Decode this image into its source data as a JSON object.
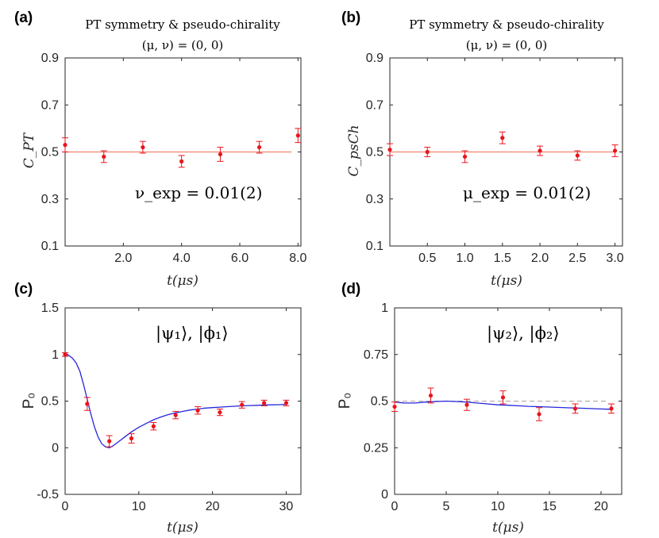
{
  "chart_data": [
    {
      "panel": "(a)",
      "type": "scatter",
      "title": "PT symmetry & pseudo-chirality",
      "subtitle": "(μ, ν) = (0, 0)",
      "xlabel": "t(μs)",
      "ylabel": "C_PT",
      "xlim": [
        0,
        8.1
      ],
      "ylim": [
        0.1,
        0.9
      ],
      "xticks": [
        "2.0",
        "4.0",
        "6.0",
        "8.0"
      ],
      "yticks": [
        "0.1",
        "0.3",
        "0.5",
        "0.7",
        "0.9"
      ],
      "annotation": "ν_exp = 0.01(2)",
      "reference_line": 0.5,
      "points": [
        {
          "x": 0,
          "y": 0.53,
          "err": 0.03
        },
        {
          "x": 1.33,
          "y": 0.48,
          "err": 0.025
        },
        {
          "x": 2.67,
          "y": 0.52,
          "err": 0.025
        },
        {
          "x": 4.0,
          "y": 0.46,
          "err": 0.025
        },
        {
          "x": 5.33,
          "y": 0.49,
          "err": 0.03
        },
        {
          "x": 6.67,
          "y": 0.52,
          "err": 0.025
        },
        {
          "x": 8.0,
          "y": 0.57,
          "err": 0.03
        }
      ]
    },
    {
      "panel": "(b)",
      "type": "scatter",
      "title": "PT symmetry & pseudo-chirality",
      "subtitle": "(μ, ν) = (0, 0)",
      "xlabel": "t(μs)",
      "ylabel": "C_psCh",
      "xlim": [
        0,
        3.1
      ],
      "ylim": [
        0.1,
        0.9
      ],
      "xticks": [
        "0.5",
        "1.0",
        "1.5",
        "2.0",
        "2.5",
        "3.0"
      ],
      "yticks": [
        "0.1",
        "0.3",
        "0.5",
        "0.7",
        "0.9"
      ],
      "annotation": "μ_exp = 0.01(2)",
      "reference_line": 0.5,
      "points": [
        {
          "x": 0,
          "y": 0.51,
          "err": 0.025
        },
        {
          "x": 0.5,
          "y": 0.5,
          "err": 0.02
        },
        {
          "x": 1.0,
          "y": 0.48,
          "err": 0.025
        },
        {
          "x": 1.5,
          "y": 0.56,
          "err": 0.025
        },
        {
          "x": 2.0,
          "y": 0.505,
          "err": 0.02
        },
        {
          "x": 2.5,
          "y": 0.485,
          "err": 0.02
        },
        {
          "x": 3.0,
          "y": 0.505,
          "err": 0.025
        }
      ]
    },
    {
      "panel": "(c)",
      "type": "line",
      "xlabel": "t(μs)",
      "ylabel": "P₀",
      "xlim": [
        0,
        32
      ],
      "ylim": [
        -0.5,
        1.5
      ],
      "xticks": [
        "0",
        "10",
        "20",
        "30"
      ],
      "yticks": [
        "-0.5",
        "0",
        "0.5",
        "1",
        "1.5"
      ],
      "annotation": "|ψ₁⟩, |ϕ₁⟩",
      "points": [
        {
          "x": 0,
          "y": 1.0,
          "err": 0.02
        },
        {
          "x": 3,
          "y": 0.47,
          "err": 0.07
        },
        {
          "x": 6,
          "y": 0.07,
          "err": 0.06
        },
        {
          "x": 9,
          "y": 0.1,
          "err": 0.05
        },
        {
          "x": 12,
          "y": 0.23,
          "err": 0.04
        },
        {
          "x": 15,
          "y": 0.35,
          "err": 0.04
        },
        {
          "x": 18,
          "y": 0.4,
          "err": 0.04
        },
        {
          "x": 21,
          "y": 0.38,
          "err": 0.035
        },
        {
          "x": 24,
          "y": 0.46,
          "err": 0.035
        },
        {
          "x": 27,
          "y": 0.48,
          "err": 0.03
        },
        {
          "x": 30,
          "y": 0.48,
          "err": 0.03
        }
      ],
      "fit_curve": {
        "x": [
          0,
          0.5,
          1,
          1.5,
          2,
          2.5,
          3,
          3.5,
          4,
          4.5,
          5,
          5.5,
          6,
          6.5,
          7,
          7.5,
          8,
          9,
          10,
          11,
          12,
          13,
          14,
          15,
          16,
          17,
          18,
          19,
          20,
          21,
          22,
          23,
          24,
          25,
          26,
          27,
          28,
          29,
          30
        ],
        "y": [
          1.0,
          0.99,
          0.96,
          0.91,
          0.82,
          0.68,
          0.52,
          0.36,
          0.22,
          0.11,
          0.04,
          0.01,
          0.0,
          0.02,
          0.05,
          0.08,
          0.11,
          0.17,
          0.22,
          0.26,
          0.3,
          0.33,
          0.355,
          0.375,
          0.39,
          0.405,
          0.415,
          0.425,
          0.43,
          0.435,
          0.44,
          0.445,
          0.45,
          0.452,
          0.455,
          0.458,
          0.46,
          0.462,
          0.465
        ]
      }
    },
    {
      "panel": "(d)",
      "type": "line",
      "xlabel": "t(μs)",
      "ylabel": "P₀",
      "xlim": [
        0,
        22
      ],
      "ylim": [
        0,
        1
      ],
      "xticks": [
        "0",
        "5",
        "10",
        "15",
        "20"
      ],
      "yticks": [
        "0",
        "0.25",
        "0.5",
        "0.75",
        "1"
      ],
      "annotation": "|ψ₂⟩, |ϕ₂⟩",
      "reference_line": 0.5,
      "points": [
        {
          "x": 0,
          "y": 0.47,
          "err": 0.025
        },
        {
          "x": 3.5,
          "y": 0.53,
          "err": 0.04
        },
        {
          "x": 7,
          "y": 0.48,
          "err": 0.03
        },
        {
          "x": 10.5,
          "y": 0.52,
          "err": 0.035
        },
        {
          "x": 14,
          "y": 0.43,
          "err": 0.035
        },
        {
          "x": 17.5,
          "y": 0.46,
          "err": 0.025
        },
        {
          "x": 21,
          "y": 0.46,
          "err": 0.025
        }
      ],
      "fit_curve": {
        "x": [
          0,
          1,
          2,
          3,
          4,
          5,
          6,
          7,
          8,
          9,
          10,
          11,
          12,
          13,
          14,
          15,
          16,
          17,
          18,
          19,
          20,
          21
        ],
        "y": [
          0.495,
          0.49,
          0.49,
          0.495,
          0.498,
          0.5,
          0.498,
          0.495,
          0.49,
          0.485,
          0.48,
          0.478,
          0.475,
          0.472,
          0.47,
          0.468,
          0.466,
          0.464,
          0.462,
          0.46,
          0.458,
          0.456
        ]
      }
    }
  ],
  "colors": {
    "point": "#e8141c",
    "errbar": "#e8141c",
    "fit": "#2626d9",
    "refline_ab": "#f0826e",
    "refline_d": "#b0a0a0"
  }
}
